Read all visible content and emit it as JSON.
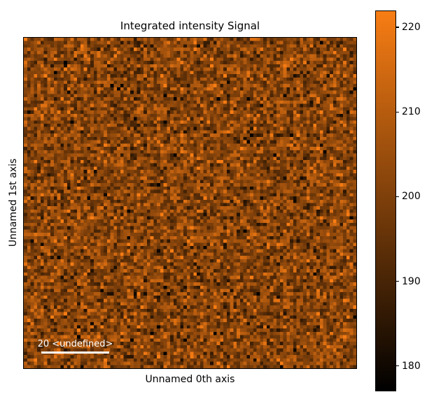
{
  "chart_data": {
    "type": "heatmap",
    "title": "Integrated intensity Signal",
    "xlabel": "Unnamed 0th axis",
    "ylabel": "Unnamed 1st axis",
    "rows": 100,
    "cols": 100,
    "value_range": [
      177,
      222
    ],
    "distribution": {
      "kind": "gaussian-noise",
      "mean": 202,
      "std": 8
    },
    "colormap": {
      "stops": [
        "#000000",
        "#f87d14"
      ],
      "description": "linear black to bright orange"
    },
    "colorbar_ticks": [
      220,
      210,
      200,
      190,
      180
    ],
    "colorbar_position": "right",
    "scalebar_label": "20 <undefined>",
    "grid": false,
    "axis_ticks_visible": false,
    "background_color": "#ffffff",
    "scalebar_color": "#ffffff",
    "seed": 7
  }
}
